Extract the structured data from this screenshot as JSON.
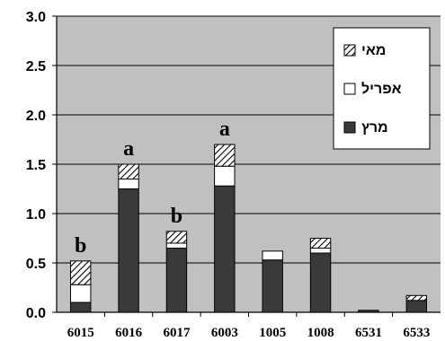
{
  "chart_data": {
    "type": "bar",
    "stacked": true,
    "categories": [
      "6015",
      "6016",
      "6017",
      "6003",
      "1005",
      "1008",
      "6531",
      "6533"
    ],
    "series": [
      {
        "name": "מרץ",
        "values": [
          0.1,
          1.25,
          0.65,
          1.28,
          0.53,
          0.6,
          0.02,
          0.12
        ],
        "color": "#3a3a3a",
        "pattern": "solid"
      },
      {
        "name": "אפריל",
        "values": [
          0.18,
          0.1,
          0.05,
          0.2,
          0.09,
          0.05,
          0.0,
          0.0
        ],
        "color": "#ffffff",
        "pattern": "empty"
      },
      {
        "name": "מאי",
        "values": [
          0.24,
          0.15,
          0.12,
          0.22,
          0.0,
          0.1,
          0.0,
          0.05
        ],
        "color": "#ffffff",
        "pattern": "diagonal-hatch"
      }
    ],
    "annotations": [
      "b",
      "a",
      "b",
      "a",
      "",
      "",
      "",
      ""
    ],
    "yticks": [
      "0.0",
      "0.5",
      "1.0",
      "1.5",
      "2.0",
      "2.5",
      "3.0"
    ],
    "ylim": [
      0,
      3.0
    ],
    "xlabel": "",
    "ylabel": "",
    "title": "",
    "grid": true,
    "legend_position": "top-right",
    "plot_background": "#c0c0c0"
  }
}
